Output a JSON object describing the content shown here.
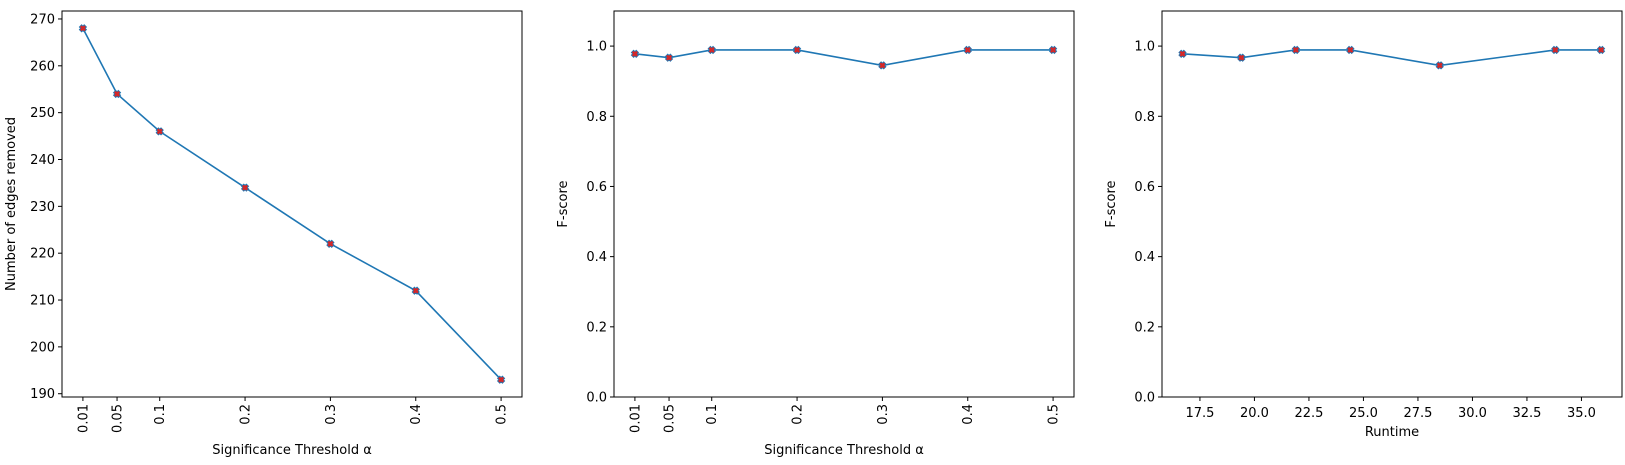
{
  "chart_data": [
    {
      "type": "line",
      "xlabel": "Significance Threshold α",
      "ylabel": "Number of edges removed",
      "x": [
        0.01,
        0.05,
        0.1,
        0.2,
        0.3,
        0.4,
        0.5
      ],
      "x_tick_labels": [
        "0.01",
        "0.05",
        "0.1",
        "0.2",
        "0.3",
        "0.4",
        "0.5"
      ],
      "x_tick_rotation": "vertical",
      "xlim": [
        -0.0145,
        0.5245
      ],
      "y": [
        268,
        254,
        246,
        234,
        222,
        212,
        193
      ],
      "y_ticks": [
        190,
        200,
        210,
        220,
        230,
        240,
        250,
        260,
        270
      ],
      "ylim": [
        189.3,
        271.7
      ],
      "line_color": "#1f77b4",
      "marker": "X",
      "marker_color": "#d62728",
      "grid": false
    },
    {
      "type": "line",
      "xlabel": "Significance Threshold α",
      "ylabel": "F-score",
      "x": [
        0.01,
        0.05,
        0.1,
        0.2,
        0.3,
        0.4,
        0.5
      ],
      "x_tick_labels": [
        "0.01",
        "0.05",
        "0.1",
        "0.2",
        "0.3",
        "0.4",
        "0.5"
      ],
      "x_tick_rotation": "vertical",
      "xlim": [
        -0.0145,
        0.5245
      ],
      "y": [
        0.978,
        0.967,
        0.989,
        0.989,
        0.945,
        0.989,
        0.989
      ],
      "y_ticks": [
        0.0,
        0.2,
        0.4,
        0.6,
        0.8,
        1.0
      ],
      "ylim": [
        0.0,
        1.1
      ],
      "line_color": "#1f77b4",
      "marker": "X",
      "marker_color": "#d62728",
      "grid": false
    },
    {
      "type": "line",
      "xlabel": "Runtime",
      "ylabel": "F-score",
      "x": [
        16.7,
        19.4,
        21.9,
        24.4,
        28.5,
        33.8,
        35.9
      ],
      "x_ticks": [
        17.5,
        20.0,
        22.5,
        25.0,
        27.5,
        30.0,
        32.5,
        35.0
      ],
      "x_tick_labels": [
        "17.5",
        "20.0",
        "22.5",
        "25.0",
        "27.5",
        "30.0",
        "32.5",
        "35.0"
      ],
      "x_tick_rotation": "horizontal",
      "xlim": [
        15.76,
        36.86
      ],
      "y": [
        0.978,
        0.967,
        0.989,
        0.989,
        0.945,
        0.989,
        0.989
      ],
      "y_ticks": [
        0.0,
        0.2,
        0.4,
        0.6,
        0.8,
        1.0
      ],
      "ylim": [
        0.0,
        1.1
      ],
      "line_color": "#1f77b4",
      "marker": "X",
      "marker_color": "#d62728",
      "grid": false
    }
  ]
}
